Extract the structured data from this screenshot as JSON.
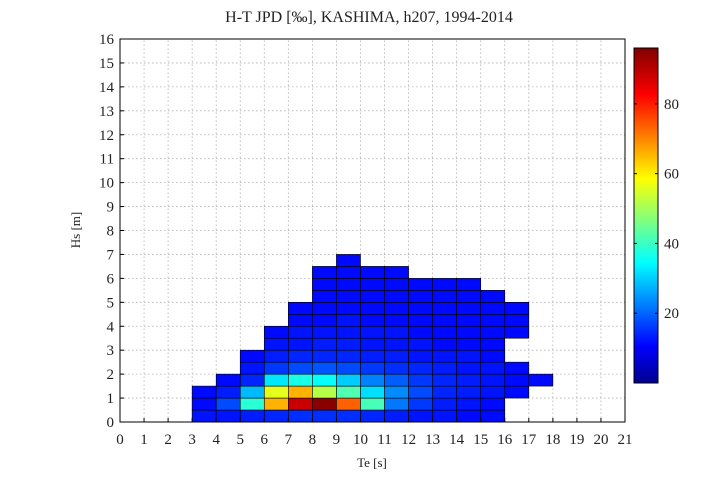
{
  "chart_data": {
    "type": "heatmap",
    "title": "H-T JPD [‰], KASHIMA, h207, 1994-2014",
    "xlabel": "Te [s]",
    "ylabel": "Hs [m]",
    "xlim": [
      0,
      21
    ],
    "ylim": [
      0,
      16
    ],
    "x_ticks": [
      "0",
      "1",
      "2",
      "3",
      "4",
      "5",
      "6",
      "7",
      "8",
      "9",
      "10",
      "11",
      "12",
      "13",
      "14",
      "15",
      "16",
      "17",
      "18",
      "19",
      "20",
      "21"
    ],
    "y_ticks": [
      "0",
      "1",
      "2",
      "3",
      "4",
      "5",
      "6",
      "7",
      "8",
      "9",
      "10",
      "11",
      "12",
      "13",
      "14",
      "15",
      "16"
    ],
    "grid": true,
    "bin_width_x": 1,
    "bin_height_y": 0.5,
    "colormap": "jet",
    "colorbar": {
      "min": 0,
      "max": 96,
      "ticks": [
        "20",
        "40",
        "60",
        "80"
      ],
      "tick_values": [
        20,
        40,
        60,
        80
      ]
    },
    "cells": [
      {
        "x0": 3,
        "y0": 0,
        "v": 2
      },
      {
        "x0": 3,
        "y0": 0.5,
        "v": 1
      },
      {
        "x0": 3,
        "y0": 1,
        "v": 1
      },
      {
        "x0": 4,
        "y0": 0,
        "v": 2
      },
      {
        "x0": 4,
        "y0": 0.5,
        "v": 8
      },
      {
        "x0": 4,
        "y0": 1,
        "v": 3
      },
      {
        "x0": 4,
        "y0": 1.5,
        "v": 1
      },
      {
        "x0": 5,
        "y0": 0,
        "v": 3
      },
      {
        "x0": 5,
        "y0": 0.5,
        "v": 32
      },
      {
        "x0": 5,
        "y0": 1,
        "v": 20
      },
      {
        "x0": 5,
        "y0": 1.5,
        "v": 4
      },
      {
        "x0": 5,
        "y0": 2,
        "v": 2
      },
      {
        "x0": 5,
        "y0": 2.5,
        "v": 1
      },
      {
        "x0": 6,
        "y0": 0,
        "v": 4
      },
      {
        "x0": 6,
        "y0": 0.5,
        "v": 63
      },
      {
        "x0": 6,
        "y0": 1,
        "v": 52
      },
      {
        "x0": 6,
        "y0": 1.5,
        "v": 25
      },
      {
        "x0": 6,
        "y0": 2,
        "v": 6
      },
      {
        "x0": 6,
        "y0": 2.5,
        "v": 3
      },
      {
        "x0": 6,
        "y0": 3,
        "v": 2
      },
      {
        "x0": 6,
        "y0": 3.5,
        "v": 1
      },
      {
        "x0": 7,
        "y0": 0,
        "v": 5
      },
      {
        "x0": 7,
        "y0": 0.5,
        "v": 88
      },
      {
        "x0": 7,
        "y0": 1,
        "v": 63
      },
      {
        "x0": 7,
        "y0": 1.5,
        "v": 30
      },
      {
        "x0": 7,
        "y0": 2,
        "v": 8
      },
      {
        "x0": 7,
        "y0": 2.5,
        "v": 4
      },
      {
        "x0": 7,
        "y0": 3,
        "v": 2
      },
      {
        "x0": 7,
        "y0": 3.5,
        "v": 2
      },
      {
        "x0": 7,
        "y0": 4,
        "v": 1
      },
      {
        "x0": 7,
        "y0": 4.5,
        "v": 1
      },
      {
        "x0": 8,
        "y0": 0,
        "v": 5
      },
      {
        "x0": 8,
        "y0": 0.5,
        "v": 95
      },
      {
        "x0": 8,
        "y0": 1,
        "v": 47
      },
      {
        "x0": 8,
        "y0": 1.5,
        "v": 28
      },
      {
        "x0": 8,
        "y0": 2,
        "v": 9
      },
      {
        "x0": 8,
        "y0": 2.5,
        "v": 4
      },
      {
        "x0": 8,
        "y0": 3,
        "v": 3
      },
      {
        "x0": 8,
        "y0": 3.5,
        "v": 2
      },
      {
        "x0": 8,
        "y0": 4,
        "v": 1
      },
      {
        "x0": 8,
        "y0": 4.5,
        "v": 1
      },
      {
        "x0": 8,
        "y0": 5,
        "v": 1
      },
      {
        "x0": 8,
        "y0": 5.5,
        "v": 1
      },
      {
        "x0": 8,
        "y0": 6,
        "v": 1
      },
      {
        "x0": 9,
        "y0": 0,
        "v": 5
      },
      {
        "x0": 9,
        "y0": 0.5,
        "v": 72
      },
      {
        "x0": 9,
        "y0": 1,
        "v": 36
      },
      {
        "x0": 9,
        "y0": 1.5,
        "v": 22
      },
      {
        "x0": 9,
        "y0": 2,
        "v": 8
      },
      {
        "x0": 9,
        "y0": 2.5,
        "v": 4
      },
      {
        "x0": 9,
        "y0": 3,
        "v": 3
      },
      {
        "x0": 9,
        "y0": 3.5,
        "v": 2
      },
      {
        "x0": 9,
        "y0": 4,
        "v": 2
      },
      {
        "x0": 9,
        "y0": 4.5,
        "v": 1
      },
      {
        "x0": 9,
        "y0": 5,
        "v": 1
      },
      {
        "x0": 9,
        "y0": 5.5,
        "v": 1
      },
      {
        "x0": 9,
        "y0": 6,
        "v": 1
      },
      {
        "x0": 9,
        "y0": 6.5,
        "v": 1
      },
      {
        "x0": 10,
        "y0": 0,
        "v": 4
      },
      {
        "x0": 10,
        "y0": 0.5,
        "v": 35
      },
      {
        "x0": 10,
        "y0": 1,
        "v": 24
      },
      {
        "x0": 10,
        "y0": 1.5,
        "v": 14
      },
      {
        "x0": 10,
        "y0": 2,
        "v": 6
      },
      {
        "x0": 10,
        "y0": 2.5,
        "v": 3
      },
      {
        "x0": 10,
        "y0": 3,
        "v": 2
      },
      {
        "x0": 10,
        "y0": 3.5,
        "v": 2
      },
      {
        "x0": 10,
        "y0": 4,
        "v": 1
      },
      {
        "x0": 10,
        "y0": 4.5,
        "v": 1
      },
      {
        "x0": 10,
        "y0": 5,
        "v": 1
      },
      {
        "x0": 10,
        "y0": 5.5,
        "v": 1
      },
      {
        "x0": 10,
        "y0": 6,
        "v": 1
      },
      {
        "x0": 11,
        "y0": 0,
        "v": 3
      },
      {
        "x0": 11,
        "y0": 0.5,
        "v": 13
      },
      {
        "x0": 11,
        "y0": 1,
        "v": 15
      },
      {
        "x0": 11,
        "y0": 1.5,
        "v": 10
      },
      {
        "x0": 11,
        "y0": 2,
        "v": 5
      },
      {
        "x0": 11,
        "y0": 2.5,
        "v": 3
      },
      {
        "x0": 11,
        "y0": 3,
        "v": 2
      },
      {
        "x0": 11,
        "y0": 3.5,
        "v": 2
      },
      {
        "x0": 11,
        "y0": 4,
        "v": 1
      },
      {
        "x0": 11,
        "y0": 4.5,
        "v": 1
      },
      {
        "x0": 11,
        "y0": 5,
        "v": 1
      },
      {
        "x0": 11,
        "y0": 5.5,
        "v": 1
      },
      {
        "x0": 11,
        "y0": 6,
        "v": 1
      },
      {
        "x0": 12,
        "y0": 0,
        "v": 2
      },
      {
        "x0": 12,
        "y0": 0.5,
        "v": 6
      },
      {
        "x0": 12,
        "y0": 1,
        "v": 8
      },
      {
        "x0": 12,
        "y0": 1.5,
        "v": 6
      },
      {
        "x0": 12,
        "y0": 2,
        "v": 4
      },
      {
        "x0": 12,
        "y0": 2.5,
        "v": 2
      },
      {
        "x0": 12,
        "y0": 3,
        "v": 2
      },
      {
        "x0": 12,
        "y0": 3.5,
        "v": 1
      },
      {
        "x0": 12,
        "y0": 4,
        "v": 1
      },
      {
        "x0": 12,
        "y0": 4.5,
        "v": 1
      },
      {
        "x0": 12,
        "y0": 5,
        "v": 1
      },
      {
        "x0": 12,
        "y0": 5.5,
        "v": 1
      },
      {
        "x0": 13,
        "y0": 0,
        "v": 2
      },
      {
        "x0": 13,
        "y0": 0.5,
        "v": 3
      },
      {
        "x0": 13,
        "y0": 1,
        "v": 4
      },
      {
        "x0": 13,
        "y0": 1.5,
        "v": 4
      },
      {
        "x0": 13,
        "y0": 2,
        "v": 3
      },
      {
        "x0": 13,
        "y0": 2.5,
        "v": 2
      },
      {
        "x0": 13,
        "y0": 3,
        "v": 1
      },
      {
        "x0": 13,
        "y0": 3.5,
        "v": 1
      },
      {
        "x0": 13,
        "y0": 4,
        "v": 1
      },
      {
        "x0": 13,
        "y0": 4.5,
        "v": 1
      },
      {
        "x0": 13,
        "y0": 5,
        "v": 1
      },
      {
        "x0": 13,
        "y0": 5.5,
        "v": 1
      },
      {
        "x0": 14,
        "y0": 0,
        "v": 1
      },
      {
        "x0": 14,
        "y0": 0.5,
        "v": 2
      },
      {
        "x0": 14,
        "y0": 1,
        "v": 3
      },
      {
        "x0": 14,
        "y0": 1.5,
        "v": 3
      },
      {
        "x0": 14,
        "y0": 2,
        "v": 2
      },
      {
        "x0": 14,
        "y0": 2.5,
        "v": 2
      },
      {
        "x0": 14,
        "y0": 3,
        "v": 1
      },
      {
        "x0": 14,
        "y0": 3.5,
        "v": 1
      },
      {
        "x0": 14,
        "y0": 4,
        "v": 1
      },
      {
        "x0": 14,
        "y0": 4.5,
        "v": 1
      },
      {
        "x0": 14,
        "y0": 5,
        "v": 1
      },
      {
        "x0": 14,
        "y0": 5.5,
        "v": 1
      },
      {
        "x0": 15,
        "y0": 0,
        "v": 1
      },
      {
        "x0": 15,
        "y0": 0.5,
        "v": 1
      },
      {
        "x0": 15,
        "y0": 1,
        "v": 2
      },
      {
        "x0": 15,
        "y0": 1.5,
        "v": 2
      },
      {
        "x0": 15,
        "y0": 2,
        "v": 2
      },
      {
        "x0": 15,
        "y0": 2.5,
        "v": 1
      },
      {
        "x0": 15,
        "y0": 3,
        "v": 1
      },
      {
        "x0": 15,
        "y0": 3.5,
        "v": 1
      },
      {
        "x0": 15,
        "y0": 4,
        "v": 1
      },
      {
        "x0": 15,
        "y0": 4.5,
        "v": 1
      },
      {
        "x0": 15,
        "y0": 5,
        "v": 1
      },
      {
        "x0": 16,
        "y0": 1,
        "v": 1
      },
      {
        "x0": 16,
        "y0": 1.5,
        "v": 1
      },
      {
        "x0": 16,
        "y0": 2,
        "v": 1
      },
      {
        "x0": 16,
        "y0": 3.5,
        "v": 1
      },
      {
        "x0": 16,
        "y0": 4,
        "v": 1
      },
      {
        "x0": 16,
        "y0": 4.5,
        "v": 1
      },
      {
        "x0": 17,
        "y0": 1.5,
        "v": 1
      }
    ]
  }
}
